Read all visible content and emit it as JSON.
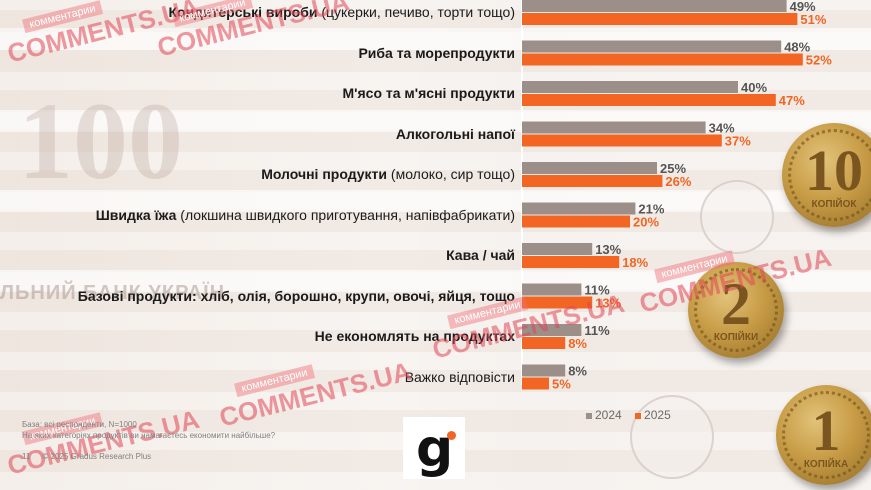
{
  "chart_data": {
    "type": "bar",
    "orientation": "horizontal",
    "categories": [
      {
        "bold": "Кондитерські вироби",
        "rest": " (цукерки, печиво, торти тощо)"
      },
      {
        "bold": "Риба та морепродукти",
        "rest": ""
      },
      {
        "bold": "М'ясо та м'ясні продукти",
        "rest": ""
      },
      {
        "bold": "Алкогольні напої",
        "rest": ""
      },
      {
        "bold": "Молочні продукти",
        "rest": " (молоко, сир тощо)"
      },
      {
        "bold": "Швидка їжа",
        "rest": " (локшина швидкого приготування, напівфабрикати)"
      },
      {
        "bold": "Кава / чай",
        "rest": ""
      },
      {
        "bold": "Базові продукти: хліб, олія, борошно, крупи, овочі, яйця, тощо",
        "rest": ""
      },
      {
        "bold": "Не економлять на продуктах",
        "rest": ""
      },
      {
        "bold": "",
        "rest": "Важко відповісти"
      }
    ],
    "series": [
      {
        "name": "2024",
        "color": "#9c8f8a",
        "values": [
          49,
          48,
          40,
          34,
          25,
          21,
          13,
          11,
          11,
          8
        ],
        "labels": [
          "49%",
          "48%",
          "40%",
          "34%",
          "25%",
          "21%",
          "13%",
          "11%",
          "11%",
          "8%"
        ]
      },
      {
        "name": "2025",
        "color": "#f26522",
        "values": [
          51,
          52,
          47,
          37,
          26,
          20,
          18,
          13,
          8,
          5
        ],
        "labels": [
          "51%",
          "52%",
          "47%",
          "37%",
          "26%",
          "20%",
          "18%",
          "13%",
          "8%",
          "5%"
        ]
      }
    ],
    "xlim": [
      0,
      100
    ],
    "legend_position": "bottom-right",
    "grid": false
  },
  "legend": {
    "items": [
      {
        "label": "2024",
        "color": "#9c8f8a"
      },
      {
        "label": "2025",
        "color": "#f26522"
      }
    ]
  },
  "footnote": {
    "base": "База: всі респонденти, N=1000",
    "question": "На яких категоріях продуктів ви намагаєтесь економити найбільше?",
    "page": "11",
    "copyright": "© 2025 Gradus Research Plus"
  },
  "logo": {
    "letter": "g"
  },
  "watermarks": [
    {
      "top": "комментарии",
      "main": "COMMENTS.UA"
    },
    {
      "top": "комментарии",
      "main": "COMMENTS.UA"
    },
    {
      "top": "комментарии",
      "main": "COMMENTS.UA"
    },
    {
      "top": "комментарии",
      "main": "COMMENTS.UA"
    },
    {
      "top": "комментарии",
      "main": "COMMENTS.UA"
    },
    {
      "top": "комментарии",
      "main": "COMMENTS.UA"
    }
  ],
  "background_text": {
    "banknote_value": "100",
    "bank": "ЛЬНИЙ БАНК УКРАЇН"
  },
  "coins": [
    {
      "value": "10",
      "word": "КОПІЙОК"
    },
    {
      "value": "2",
      "word": "КОПІЙКИ"
    },
    {
      "value": "1",
      "word": "КОПІЙКА"
    }
  ]
}
